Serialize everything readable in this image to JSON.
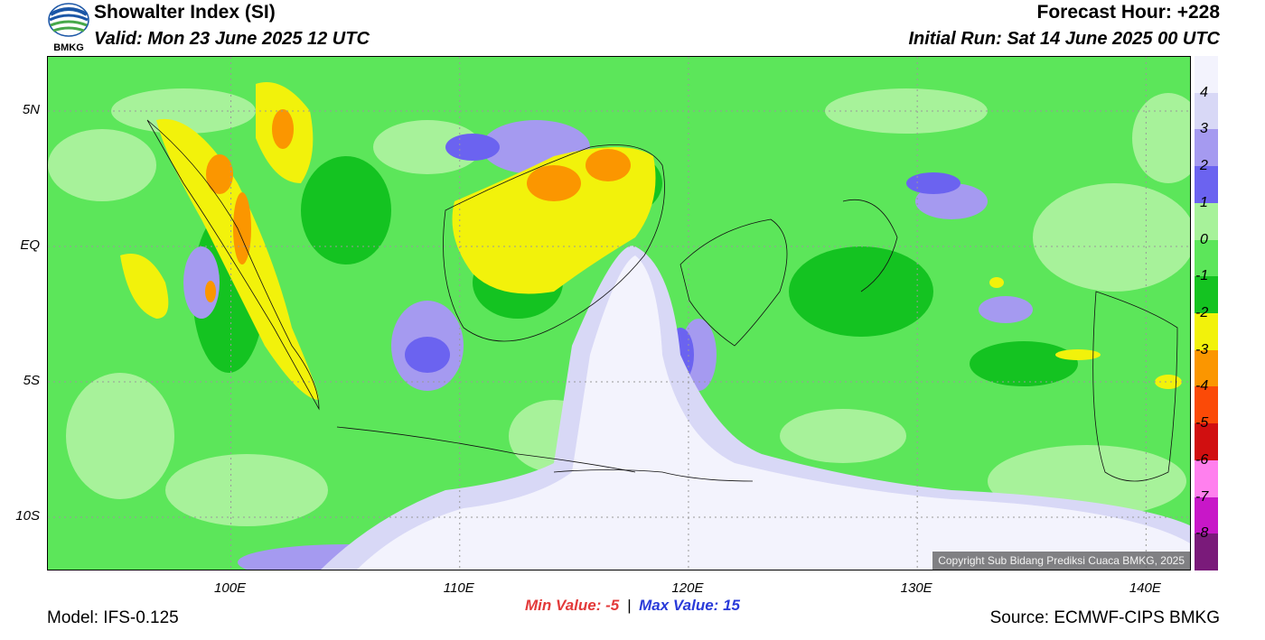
{
  "header": {
    "title": "Showalter Index (SI)",
    "valid": "Valid: Mon 23 June 2025 12 UTC",
    "forecast_hour": "Forecast Hour: +228",
    "initial_run": "Initial Run: Sat 14 June 2025 00 UTC",
    "logo_text": "BMKG"
  },
  "map": {
    "lat_labels": [
      {
        "text": "5N",
        "lat": 5
      },
      {
        "text": "EQ",
        "lat": 0
      },
      {
        "text": "5S",
        "lat": -5
      },
      {
        "text": "10S",
        "lat": -10
      }
    ],
    "lon_labels": [
      {
        "text": "100E",
        "lon": 100
      },
      {
        "text": "110E",
        "lon": 110
      },
      {
        "text": "120E",
        "lon": 120
      },
      {
        "text": "130E",
        "lon": 130
      },
      {
        "text": "140E",
        "lon": 140
      }
    ],
    "lon_range": [
      92,
      142
    ],
    "lat_range": [
      -12,
      7
    ],
    "copyright": "Copyright Sub Bidang Prediksi Cuaca BMKG, 2025"
  },
  "colorbar": {
    "labels": [
      "4",
      "3",
      "2",
      "1",
      "0",
      "-1",
      "-2",
      "-3",
      "-4",
      "-5",
      "-6",
      "-7",
      "-8"
    ],
    "colors": [
      "#f3f3fd",
      "#d8d8f6",
      "#a59af0",
      "#6b63f0",
      "#a7f29a",
      "#5ce65a",
      "#14c321",
      "#f2f20b",
      "#fb9600",
      "#fb4a07",
      "#d10f10",
      "#ff80ee",
      "#c817c8",
      "#7a1a7a"
    ]
  },
  "footer": {
    "min_label": "Min Value:",
    "min_value": "-5",
    "max_label": "Max Value:",
    "max_value": "15",
    "separator": "|",
    "model": "Model: IFS-0.125",
    "source": "Source: ECMWF-CIPS BMKG"
  }
}
